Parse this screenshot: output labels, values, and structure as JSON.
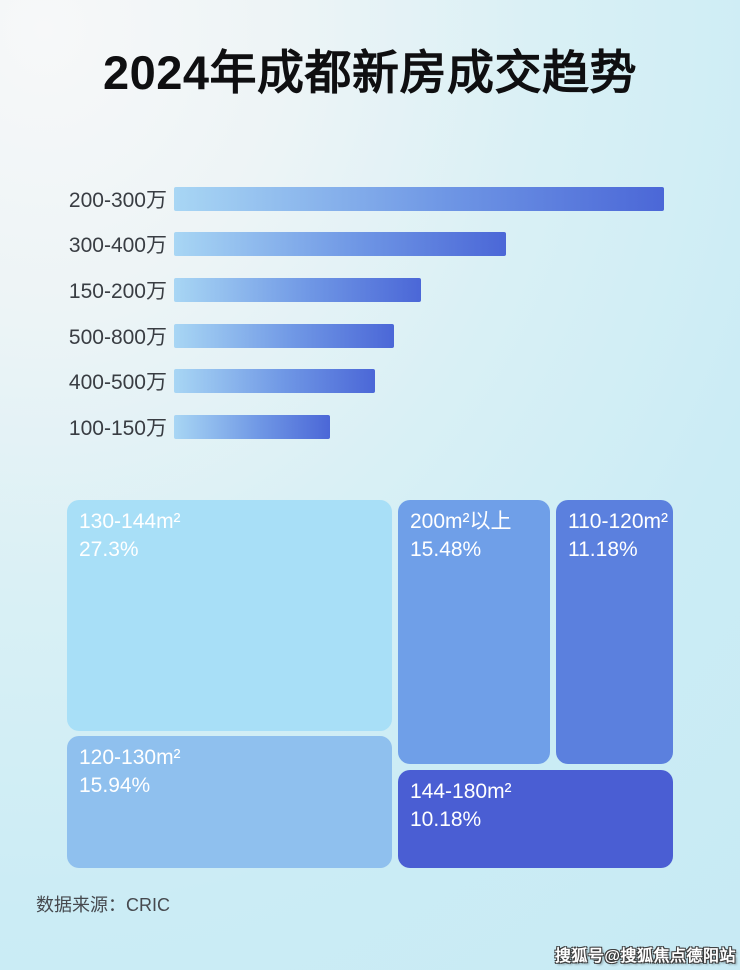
{
  "title": "2024年成都新房成交趋势",
  "footer": {
    "source": "数据来源：CRIC"
  },
  "watermark": {
    "text": "搜狐号@搜狐焦点德阳站"
  },
  "colors": {
    "background_top_left": "#f7f8f9",
    "background_cyan": "#c7eaf4",
    "bar_gradient_start": "#a8d6f4",
    "bar_gradient_end": "#4b67d7",
    "bar_label_text": "#393d43",
    "title_text": "#0f0f11",
    "tile_text": "#ffffff",
    "footer_text": "#46494e"
  },
  "chart_data": [
    {
      "type": "bar",
      "orientation": "horizontal",
      "title": "2024年成都新房成交趋势",
      "categories": [
        "200-300万",
        "300-400万",
        "150-200万",
        "500-800万",
        "400-500万",
        "100-150万"
      ],
      "values_relative_pct_of_max": [
        100,
        68,
        50,
        45,
        41,
        32
      ],
      "bar_widths_css": [
        "490px",
        "332px",
        "247px",
        "220px",
        "201px",
        "156px"
      ],
      "value_labels_shown": false,
      "axis_shown": false,
      "grid": false,
      "legend": false
    },
    {
      "type": "treemap",
      "tiles": [
        {
          "name": "130-144m²",
          "pct": "27.3%",
          "value": 27.3,
          "color": "#a8dff7"
        },
        {
          "name": "120-130m²",
          "pct": "15.94%",
          "value": 15.94,
          "color": "#8fc0ee"
        },
        {
          "name": "200m²以上",
          "pct": "15.48%",
          "value": 15.48,
          "color": "#6f9fe8"
        },
        {
          "name": "110-120m²",
          "pct": "11.18%",
          "value": 11.18,
          "color": "#5b80de"
        },
        {
          "name": "144-180m²",
          "pct": "10.18%",
          "value": 10.18,
          "color": "#4a5ed3"
        }
      ],
      "legend": false
    }
  ]
}
